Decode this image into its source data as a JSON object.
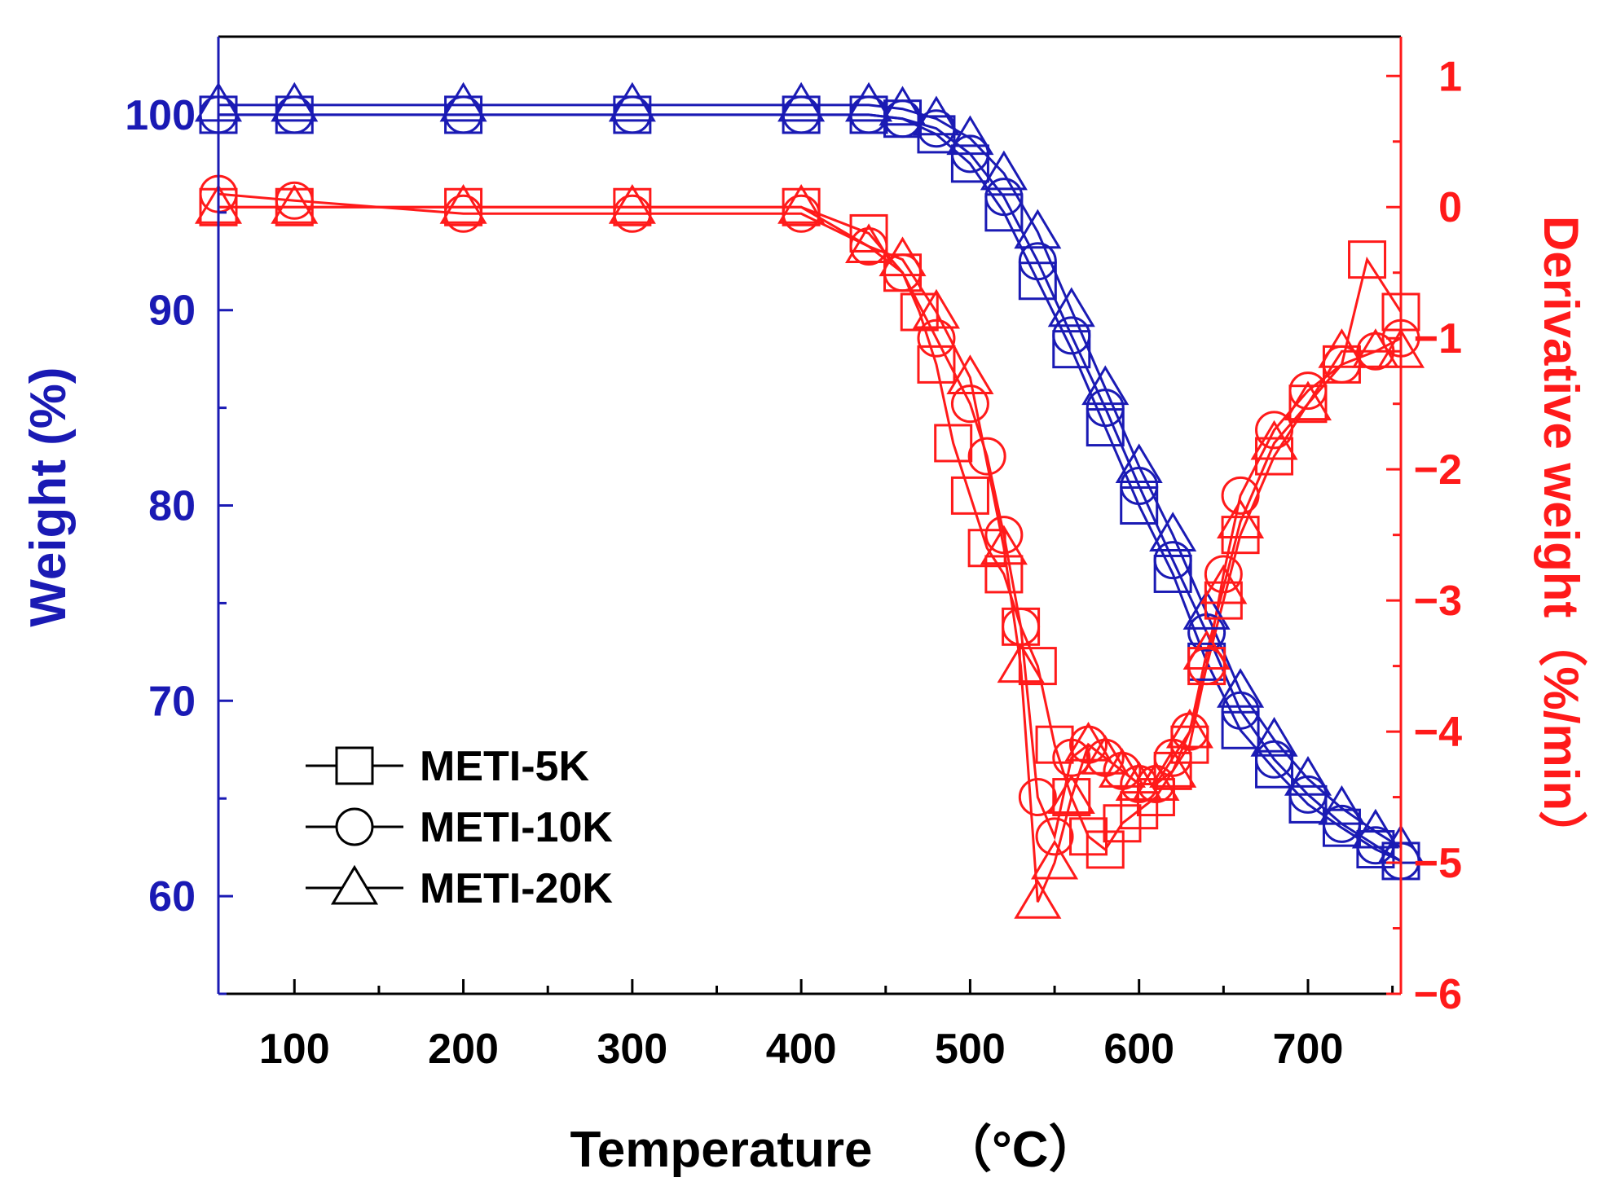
{
  "chart_data": {
    "type": "line",
    "xlabel": "Temperature",
    "xlabel_unit": "（°C）",
    "ylabel_left": "Weight (%)",
    "ylabel_right": "Derivative weight（%/min）",
    "xlim": [
      55,
      755
    ],
    "ylim_left": [
      55,
      104
    ],
    "ylim_right": [
      -6,
      1.3
    ],
    "x_ticks": [
      100,
      200,
      300,
      400,
      500,
      600,
      700
    ],
    "y_left_ticks": [
      60,
      70,
      80,
      90,
      100
    ],
    "y_right_ticks": [
      1,
      0,
      -1,
      -2,
      -3,
      -4,
      -5,
      -6
    ],
    "y_right_tick_labels": [
      "1",
      "0",
      "−1",
      "−2",
      "−3",
      "−4",
      "−5",
      "−6"
    ],
    "colors": {
      "weight": "#1a1ab4",
      "derivative": "#ff1a1a",
      "legend": "#000000"
    },
    "legend": {
      "placement": "bottom-left",
      "entries": [
        {
          "label": "METI-5K",
          "marker": "square"
        },
        {
          "label": "METI-10K",
          "marker": "circle"
        },
        {
          "label": "METI-20K",
          "marker": "triangle"
        }
      ]
    },
    "weight_series": [
      {
        "name": "METI-5K",
        "marker": "square",
        "x": [
          55,
          100,
          200,
          300,
          400,
          440,
          460,
          480,
          500,
          520,
          540,
          560,
          580,
          600,
          620,
          640,
          660,
          680,
          700,
          720,
          740,
          755
        ],
        "y": [
          100,
          100,
          100,
          100,
          100,
          100,
          99.8,
          99,
          97.5,
          95,
          91.5,
          88,
          84,
          80,
          76.5,
          72,
          68.5,
          66.5,
          64.7,
          63.5,
          62.4,
          61.8
        ]
      },
      {
        "name": "METI-10K",
        "marker": "circle",
        "x": [
          55,
          100,
          200,
          300,
          400,
          440,
          460,
          480,
          500,
          520,
          540,
          560,
          580,
          600,
          620,
          640,
          660,
          680,
          700,
          720,
          740,
          755
        ],
        "y": [
          100,
          100,
          100,
          100,
          100,
          100,
          99.8,
          99.3,
          98,
          95.8,
          92.5,
          88.7,
          85,
          81,
          77.2,
          73.5,
          69.5,
          67,
          65.2,
          63.7,
          62.6,
          61.8
        ]
      },
      {
        "name": "METI-20K",
        "marker": "triangle",
        "x": [
          55,
          100,
          200,
          300,
          400,
          440,
          460,
          480,
          500,
          520,
          540,
          560,
          580,
          600,
          620,
          640,
          660,
          680,
          700,
          720,
          740,
          755
        ],
        "y": [
          100.5,
          100.5,
          100.5,
          100.5,
          100.5,
          100.5,
          100.3,
          99.8,
          98.8,
          97,
          94,
          90,
          86,
          82,
          78.5,
          74.5,
          70.5,
          68,
          66,
          64.5,
          63.3,
          62.5
        ]
      }
    ],
    "derivative_series": [
      {
        "name": "METI-5K",
        "marker": "square",
        "x": [
          55,
          100,
          200,
          300,
          400,
          440,
          460,
          470,
          480,
          490,
          500,
          510,
          520,
          530,
          540,
          550,
          560,
          570,
          580,
          590,
          600,
          610,
          620,
          630,
          640,
          650,
          660,
          680,
          700,
          720,
          735,
          755
        ],
        "y": [
          0,
          0,
          0,
          0,
          0,
          -0.2,
          -0.5,
          -0.8,
          -1.2,
          -1.8,
          -2.2,
          -2.6,
          -2.8,
          -3.2,
          -3.5,
          -4.1,
          -4.5,
          -4.8,
          -4.9,
          -4.7,
          -4.6,
          -4.5,
          -4.3,
          -4.1,
          -3.5,
          -3.0,
          -2.5,
          -1.9,
          -1.5,
          -1.2,
          -0.4,
          -0.8
        ]
      },
      {
        "name": "METI-10K",
        "marker": "circle",
        "x": [
          55,
          100,
          200,
          300,
          400,
          440,
          460,
          480,
          500,
          510,
          520,
          530,
          540,
          550,
          560,
          570,
          580,
          590,
          600,
          610,
          620,
          630,
          640,
          650,
          660,
          680,
          700,
          720,
          740,
          755
        ],
        "y": [
          0.1,
          0.05,
          -0.05,
          -0.05,
          -0.05,
          -0.3,
          -0.5,
          -1,
          -1.5,
          -1.9,
          -2.5,
          -3.2,
          -4.5,
          -4.8,
          -4.2,
          -4.1,
          -4.2,
          -4.3,
          -4.4,
          -4.4,
          -4.2,
          -4,
          -3.5,
          -2.8,
          -2.2,
          -1.7,
          -1.4,
          -1.2,
          -1.1,
          -1
        ]
      },
      {
        "name": "METI-20K",
        "marker": "triangle",
        "x": [
          55,
          100,
          200,
          300,
          400,
          440,
          460,
          480,
          500,
          520,
          530,
          540,
          550,
          560,
          570,
          580,
          590,
          600,
          610,
          620,
          630,
          640,
          650,
          660,
          680,
          700,
          720,
          740,
          755
        ],
        "y": [
          0,
          0,
          0,
          0,
          0,
          -0.3,
          -0.4,
          -0.8,
          -1.3,
          -2.6,
          -3.5,
          -5.3,
          -5.0,
          -4.5,
          -4.1,
          -4.2,
          -4.3,
          -4.4,
          -4.4,
          -4.3,
          -4.0,
          -3.4,
          -2.9,
          -2.4,
          -1.8,
          -1.5,
          -1.1,
          -1.1,
          -1.1
        ]
      }
    ]
  }
}
